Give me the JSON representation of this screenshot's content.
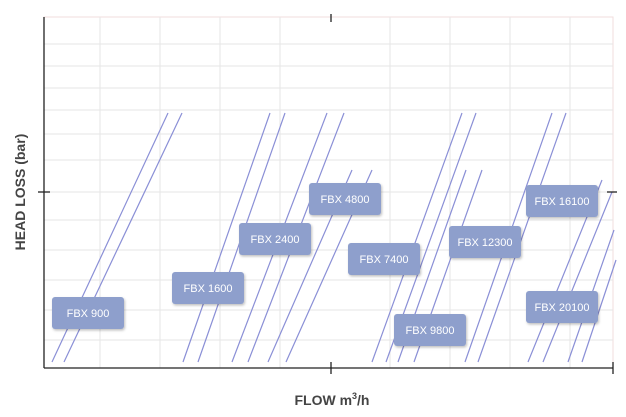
{
  "chart_data": {
    "type": "line",
    "xlabel": "FLOW m",
    "xlabel_superscript": "3",
    "xlabel_suffix": "/h",
    "ylabel": "HEAD LOSS (bar)",
    "grid": true,
    "legend": "none",
    "series_labels": [
      "FBX 900",
      "FBX 1600",
      "FBX 2400",
      "FBX 4800",
      "FBX 7400",
      "FBX 9800",
      "FBX 12300",
      "FBX 16100",
      "FBX 20100"
    ],
    "series": [
      {
        "name": "FBX 900",
        "label_position": "bottom-left"
      },
      {
        "name": "FBX 1600",
        "label_position": "lower-middle"
      },
      {
        "name": "FBX 2400",
        "label_position": "middle"
      },
      {
        "name": "FBX 4800",
        "label_position": "upper-middle"
      },
      {
        "name": "FBX 7400",
        "label_position": "middle"
      },
      {
        "name": "FBX 9800",
        "label_position": "bottom"
      },
      {
        "name": "FBX 12300",
        "label_position": "middle-right"
      },
      {
        "name": "FBX 16100",
        "label_position": "upper-right"
      },
      {
        "name": "FBX 20100",
        "label_position": "lower-right"
      }
    ],
    "colors": {
      "curve": "#8a8fd6",
      "label_box": "#8e9fcc",
      "label_text": "#ffffff",
      "axis": "#222222",
      "grid": "#e6e6e6"
    }
  }
}
